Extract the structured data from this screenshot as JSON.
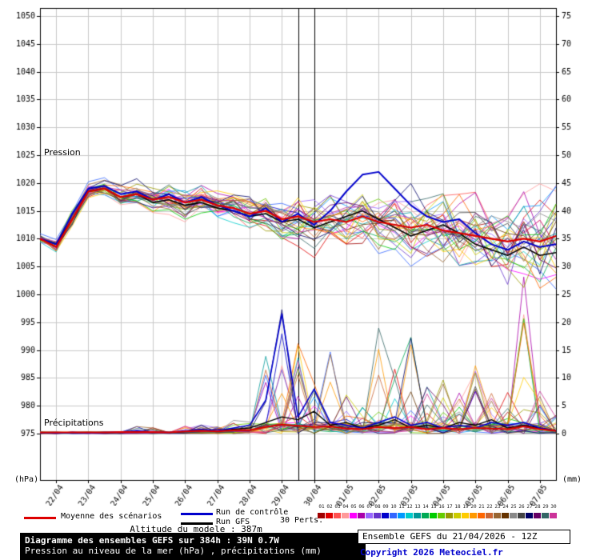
{
  "chart_data": {
    "type": "line",
    "title": "Diagramme des ensembles GEFS sur 384h : 39N 0.7W",
    "subtitle": "Pression au niveau de la mer (hPa) , précipitations (mm)",
    "grid": true,
    "x": {
      "total_hours": 384,
      "step_hours": 12,
      "day_tick_hours": [
        12,
        36,
        60,
        84,
        108,
        132,
        156,
        180,
        204,
        228,
        252,
        276,
        300,
        324,
        348,
        372
      ],
      "day_tick_labels": [
        "22/04",
        "23/04",
        "24/04",
        "25/04",
        "26/04",
        "27/04",
        "28/04",
        "29/04",
        "30/04",
        "01/05",
        "02/05",
        "03/05",
        "04/05",
        "05/05",
        "06/05",
        "07/05"
      ],
      "marker_hours": [
        192,
        204
      ]
    },
    "pressure_axis": {
      "label": "Pression",
      "unit": "(hPa)",
      "min": 975,
      "max": 1050,
      "tick_step": 5,
      "side": "left"
    },
    "precip_axis": {
      "label": "Précipitations",
      "unit": "(mm)",
      "min": 0,
      "max": 75,
      "tick_step": 5,
      "side": "right"
    },
    "series": {
      "mean_pressure": {
        "name": "Moyenne des scénarios",
        "color": "#dd0000",
        "values": [
          1010,
          1008.5,
          1013.5,
          1018.5,
          1019,
          1017.5,
          1018,
          1017,
          1017.5,
          1016.5,
          1017,
          1016,
          1015.5,
          1014.5,
          1015,
          1013.5,
          1014,
          1013,
          1013.5,
          1013,
          1014,
          1013,
          1012.5,
          1012,
          1012.5,
          1011.5,
          1011,
          1010.5,
          1010,
          1009.5,
          1010,
          1009.5,
          1010.5
        ]
      },
      "control_pressure": {
        "name": "Run de contrôle",
        "color": "#0000cc",
        "values": [
          1010,
          1009,
          1014.5,
          1019,
          1019.5,
          1018,
          1018.5,
          1017,
          1018,
          1016.5,
          1017.5,
          1016,
          1015,
          1014,
          1015.5,
          1013,
          1014.5,
          1012.5,
          1015,
          1018.5,
          1021.5,
          1022,
          1019,
          1016,
          1014,
          1013,
          1013.5,
          1011,
          1009,
          1008,
          1009.5,
          1008.5,
          1009
        ]
      },
      "gfs_pressure": {
        "name": "Run GFS",
        "color": "#000000",
        "values": [
          1010,
          1009,
          1013.5,
          1018.5,
          1019,
          1017.5,
          1018,
          1016.5,
          1017,
          1016,
          1016.5,
          1015.5,
          1015,
          1014,
          1014.5,
          1013,
          1013.5,
          1012,
          1013,
          1014,
          1015,
          1013.5,
          1012,
          1010.5,
          1011.5,
          1012.5,
          1011,
          1009,
          1008,
          1007,
          1008.5,
          1007,
          1007.5
        ]
      },
      "mean_precip": {
        "name": "Moyenne des scénarios",
        "color": "#dd0000",
        "values": [
          0.2,
          0.2,
          0.2,
          0.2,
          0.2,
          0.3,
          0.3,
          0.3,
          0.2,
          0.4,
          0.5,
          0.4,
          0.6,
          0.6,
          1.2,
          1.6,
          1.4,
          1.2,
          1.3,
          0.9,
          0.8,
          1.2,
          1,
          1.2,
          0.8,
          1,
          0.8,
          1,
          0.9,
          0.8,
          1.3,
          0.8,
          0.5
        ]
      },
      "control_precip": {
        "name": "Run de contrôle",
        "color": "#0000cc",
        "values": [
          0.2,
          0.1,
          0.2,
          0.1,
          0.2,
          0.3,
          0.5,
          0.3,
          0.2,
          0.5,
          0.8,
          0.5,
          1,
          1.5,
          6,
          21.5,
          3,
          8,
          2,
          1.5,
          1,
          2,
          3,
          1.5,
          2,
          1,
          1.5,
          1,
          2,
          1.5,
          2,
          1,
          0.5
        ]
      },
      "gfs_precip": {
        "name": "Run GFS",
        "color": "#000000",
        "values": [
          0.1,
          0.1,
          0.1,
          0.1,
          0.2,
          0.2,
          0.3,
          0.2,
          0.2,
          0.4,
          0.6,
          0.4,
          0.8,
          1,
          2,
          3,
          2.5,
          4,
          1.5,
          2,
          1,
          1.5,
          2.5,
          1,
          1.5,
          1,
          2,
          1.5,
          2.5,
          1,
          1.5,
          1,
          0.5
        ]
      }
    },
    "ensemble": {
      "count": 30,
      "spread_pressure": [
        0.8,
        1.2,
        1.5,
        1.5,
        1.8,
        2,
        2.2,
        2.5,
        2.5,
        2.8,
        3,
        3,
        3.2,
        3.5,
        3.5,
        4,
        4.5,
        5,
        5,
        5.5,
        5.5,
        6,
        6,
        6.5,
        6.5,
        7,
        7,
        7.5,
        7.5,
        8,
        8,
        8.5,
        8.5
      ],
      "precip_envelope": [
        0.3,
        0.3,
        0.4,
        0.3,
        0.3,
        0.5,
        1,
        0.8,
        0.5,
        1,
        1.5,
        1,
        2,
        2,
        14,
        22,
        21,
        9,
        15,
        8,
        6,
        19,
        12,
        17,
        8,
        10,
        8,
        12,
        9,
        10,
        28,
        8,
        3
      ],
      "members": [
        {
          "id": "01",
          "color": "#a00000",
          "seed": 11
        },
        {
          "id": "02",
          "color": "#e00000",
          "seed": 48
        },
        {
          "id": "03",
          "color": "#ff5050",
          "seed": 85
        },
        {
          "id": "04",
          "color": "#ff9999",
          "seed": 122
        },
        {
          "id": "05",
          "color": "#ff00ff",
          "seed": 159
        },
        {
          "id": "06",
          "color": "#aa00aa",
          "seed": 196
        },
        {
          "id": "07",
          "color": "#9966ff",
          "seed": 233
        },
        {
          "id": "08",
          "color": "#6633cc",
          "seed": 270
        },
        {
          "id": "09",
          "color": "#0000cc",
          "seed": 307
        },
        {
          "id": "10",
          "color": "#3366ff",
          "seed": 344
        },
        {
          "id": "11",
          "color": "#0099ff",
          "seed": 381
        },
        {
          "id": "12",
          "color": "#00cccc",
          "seed": 418
        },
        {
          "id": "13",
          "color": "#009999",
          "seed": 455
        },
        {
          "id": "14",
          "color": "#00aa55",
          "seed": 492
        },
        {
          "id": "15",
          "color": "#00cc00",
          "seed": 529
        },
        {
          "id": "16",
          "color": "#66cc00",
          "seed": 566
        },
        {
          "id": "17",
          "color": "#999900",
          "seed": 603
        },
        {
          "id": "18",
          "color": "#cccc00",
          "seed": 640
        },
        {
          "id": "19",
          "color": "#ffcc00",
          "seed": 677
        },
        {
          "id": "20",
          "color": "#ff9900",
          "seed": 714
        },
        {
          "id": "21",
          "color": "#ff6600",
          "seed": 751
        },
        {
          "id": "22",
          "color": "#cc6633",
          "seed": 788
        },
        {
          "id": "23",
          "color": "#996633",
          "seed": 825
        },
        {
          "id": "24",
          "color": "#663300",
          "seed": 862
        },
        {
          "id": "25",
          "color": "#888888",
          "seed": 899
        },
        {
          "id": "26",
          "color": "#444444",
          "seed": 936
        },
        {
          "id": "27",
          "color": "#000066",
          "seed": 973
        },
        {
          "id": "28",
          "color": "#660066",
          "seed": 1010
        },
        {
          "id": "29",
          "color": "#336666",
          "seed": 1047
        },
        {
          "id": "30",
          "color": "#cc3399",
          "seed": 1084
        }
      ]
    }
  },
  "legend": {
    "perts_label": "30 Perts.",
    "altitude_note": "Altitude du modele : 387m"
  },
  "footer": {
    "title_line": "Diagramme des ensembles GEFS sur 384h : 39N 0.7W",
    "subtitle_line": "Pression au niveau de la mer (hPa) , précipitations (mm)",
    "run_info": "Ensemble GEFS du 21/04/2026 - 12Z",
    "copyright": "Copyright 2026 Meteociel.fr",
    "copyright_color": "#0000cc"
  }
}
